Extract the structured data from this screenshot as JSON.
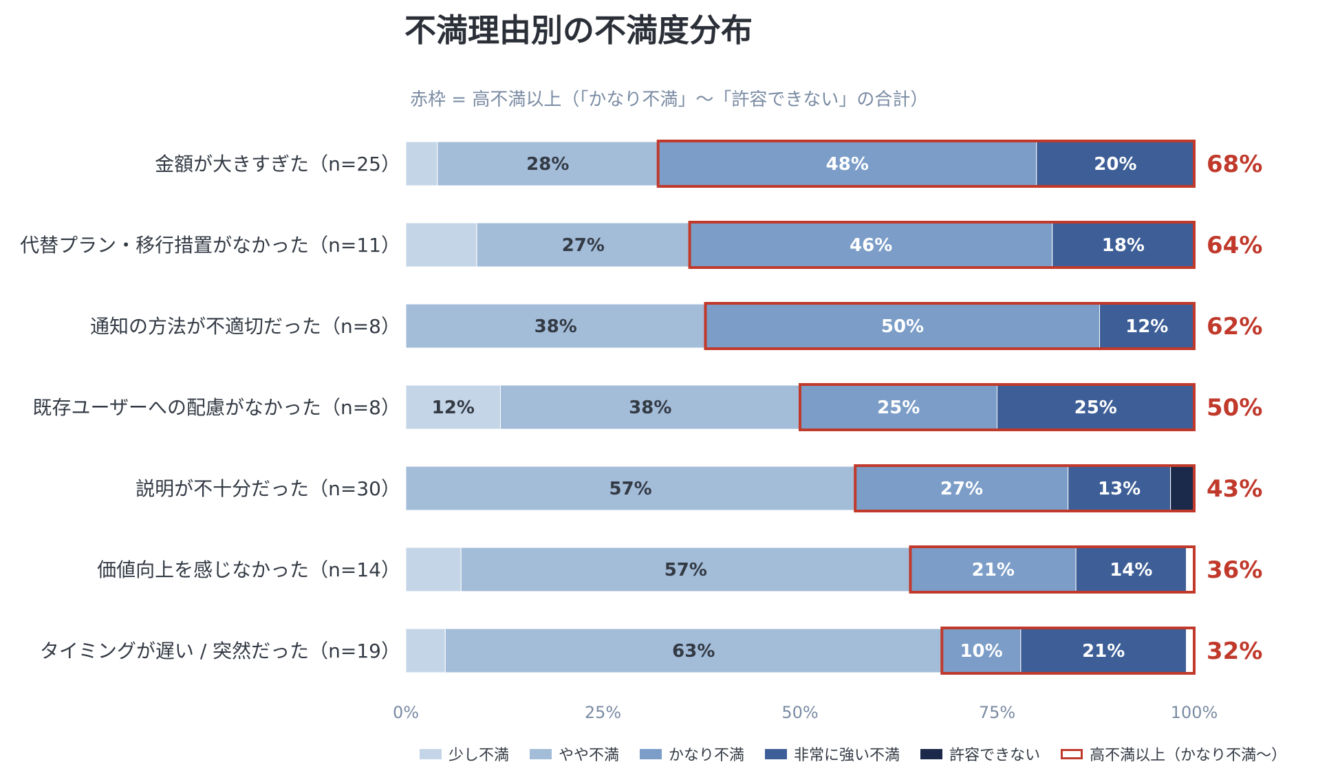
{
  "chart_data": {
    "type": "bar",
    "orientation": "horizontal",
    "stacked": true,
    "title": "不満理由別の不満度分布",
    "subtitle": "赤枠 = 高不満以上（「かなり不満」～「許容できない」の合計）",
    "categories": [
      "金額が大きすぎた（n=25）",
      "代替プラン・移行措置がなかった（n=11）",
      "通知の方法が不適切だった（n=8）",
      "既存ユーザーへの配慮がなかった（n=8）",
      "説明が不十分だった（n=30）",
      "価値向上を感じなかった（n=14）",
      "タイミングが遅い / 突然だった（n=19）"
    ],
    "series": [
      {
        "name": "少し不満",
        "color": "#c5d5e8",
        "values": [
          4,
          9,
          0,
          12,
          0,
          7,
          5
        ],
        "labels": [
          "",
          "",
          "",
          "12%",
          "",
          "",
          ""
        ]
      },
      {
        "name": "やや不満",
        "color": "#a3bcd8",
        "values": [
          28,
          27,
          38,
          38,
          57,
          57,
          63
        ],
        "labels": [
          "28%",
          "27%",
          "38%",
          "38%",
          "57%",
          "57%",
          "63%"
        ]
      },
      {
        "name": "かなり不満",
        "color": "#7b9dc7",
        "values": [
          48,
          46,
          50,
          25,
          27,
          21,
          10
        ],
        "labels": [
          "48%",
          "46%",
          "50%",
          "25%",
          "27%",
          "21%",
          "10%"
        ]
      },
      {
        "name": "非常に強い不満",
        "color": "#3d5e96",
        "values": [
          20,
          18,
          12,
          25,
          13,
          14,
          21
        ],
        "labels": [
          "20%",
          "18%",
          "12%",
          "25%",
          "13%",
          "14%",
          "21%"
        ]
      },
      {
        "name": "許容できない",
        "color": "#1b2a4a",
        "values": [
          0,
          0,
          0,
          0,
          3,
          0,
          0
        ],
        "labels": [
          "",
          "",
          "",
          "",
          "",
          "",
          ""
        ]
      }
    ],
    "high_dissatisfaction_totals": [
      "68%",
      "64%",
      "62%",
      "50%",
      "43%",
      "36%",
      "32%"
    ],
    "highlight": {
      "name": "高不満以上（かなり不満～）",
      "color": "#c0392b"
    },
    "xticks": [
      "0%",
      "25%",
      "50%",
      "75%",
      "100%"
    ],
    "xlim": [
      0,
      100
    ],
    "grid": false,
    "legend_position": "bottom"
  }
}
